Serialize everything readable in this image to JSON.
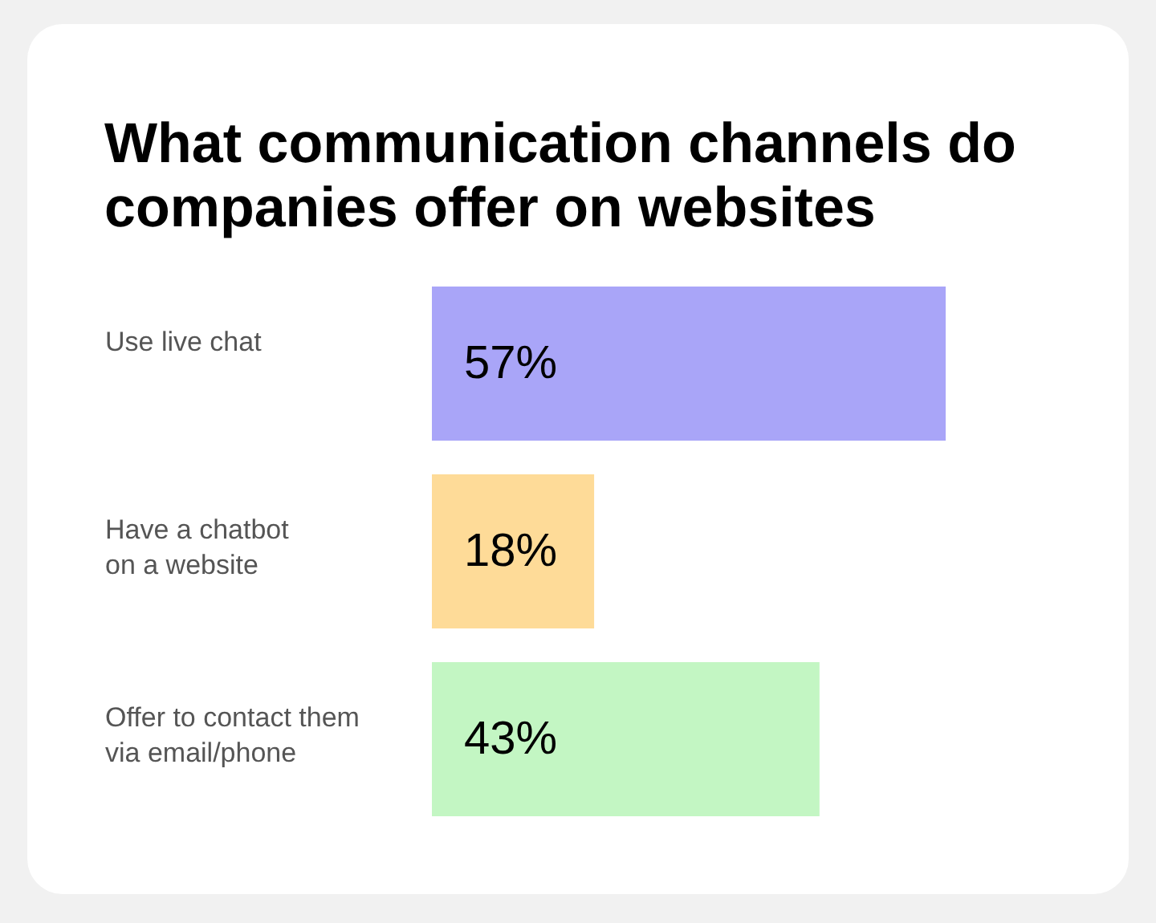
{
  "chart_data": {
    "type": "bar",
    "orientation": "horizontal",
    "title": "What communication channels do companies offer on websites",
    "categories": [
      "Use live chat",
      "Have a chatbot on a website",
      "Offer to contact them via email/phone"
    ],
    "values": [
      57,
      18,
      43
    ],
    "colors": [
      "#a9a5f8",
      "#fedb98",
      "#c3f6c3"
    ],
    "value_labels": [
      "57%",
      "18%",
      "43%"
    ]
  }
}
